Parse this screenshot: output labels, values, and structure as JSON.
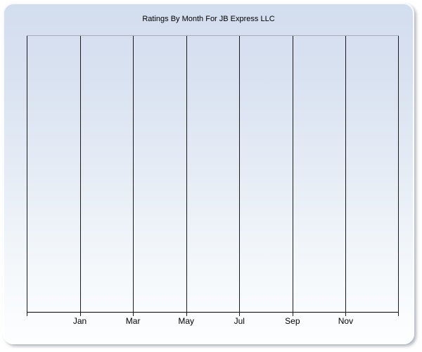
{
  "chart_data": {
    "type": "line",
    "title": "Ratings By Month For JB Express LLC",
    "categories": [
      "Jan",
      "Mar",
      "May",
      "Jul",
      "Sep",
      "Nov"
    ],
    "series": [],
    "xlabel": "",
    "ylabel": "",
    "y_tick_labels": [],
    "legend": "none",
    "grid": "8 vertical gridlines at 2-month intervals, no horizontal gridlines, plot area empty (no data points plotted)"
  },
  "colors": {
    "panel_gradient_top": "#d2ddee",
    "panel_gradient_bottom": "#fdfeff",
    "gridline": "#1a1a1a",
    "plot_top_border": "#a8aeb6",
    "axis_line": "#000000",
    "text": "#000000",
    "page_background": "#ffffff",
    "panel_shadow": "#8c94a0"
  }
}
